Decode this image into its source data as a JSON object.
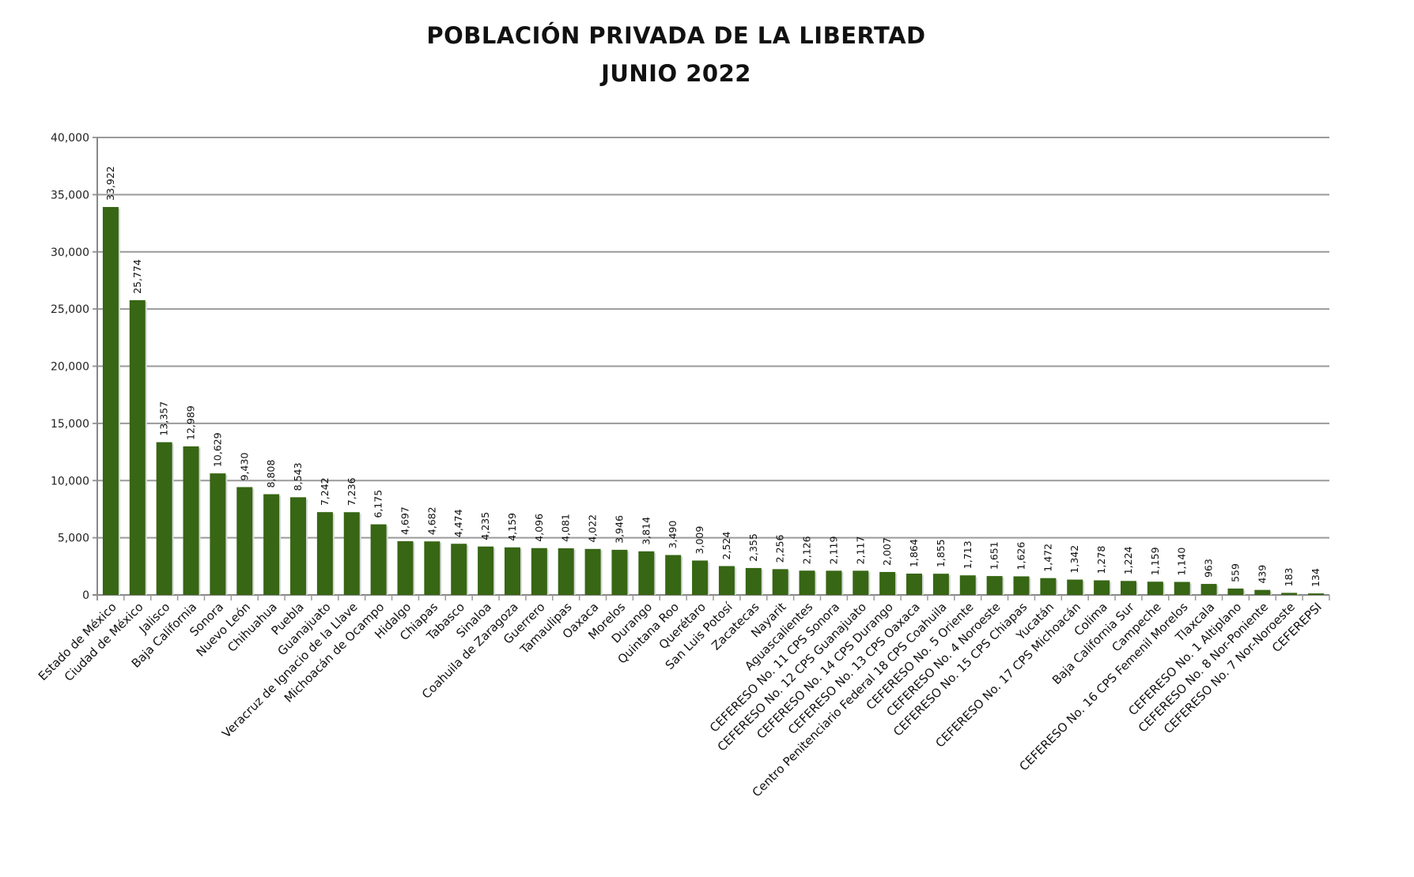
{
  "chart_data": {
    "type": "bar",
    "title": "POBLACIÓN PRIVADA DE LA LIBERTAD",
    "subtitle": "JUNIO 2022",
    "xlabel": "",
    "ylabel": "",
    "ylim": [
      0,
      40000
    ],
    "yticks": [
      0,
      5000,
      10000,
      15000,
      20000,
      25000,
      30000,
      35000,
      40000
    ],
    "ytick_labels": [
      "0",
      "5,000",
      "10,000",
      "15,000",
      "20,000",
      "25,000",
      "30,000",
      "35,000",
      "40,000"
    ],
    "grid": true,
    "bar_color": "#376614",
    "categories": [
      "Estado de México",
      "Ciudad de México",
      "Jalisco",
      "Baja California",
      "Sonora",
      "Nuevo León",
      "Chihuahua",
      "Puebla",
      "Guanajuato",
      "Veracruz de Ignacio de la Llave",
      "Michoacán de Ocampo",
      "Hidalgo",
      "Chiapas",
      "Tabasco",
      "Sinaloa",
      "Coahuila de Zaragoza",
      "Guerrero",
      "Tamaulipas",
      "Oaxaca",
      "Morelos",
      "Durango",
      "Quintana Roo",
      "Querétaro",
      "San Luis Potosí",
      "Zacatecas",
      "Nayarit",
      "Aguascalientes",
      "CEFERESO No. 11 CPS Sonora",
      "CEFERESO No. 12 CPS Guanajuato",
      "CEFERESO No. 14 CPS Durango",
      "CEFERESO No. 13 CPS Oaxaca",
      "Centro Penitenciario Federal 18 CPS Coahuila",
      "CEFERESO No. 5 Oriente",
      "CEFERESO No. 4 Noroeste",
      "CEFERESO No. 15 CPS Chiapas",
      "Yucatán",
      "CEFERESO No. 17 CPS Michoacán",
      "Colima",
      "Baja California Sur",
      "Campeche",
      "CEFERESO No. 16 CPS Femenil Morelos",
      "Tlaxcala",
      "CEFERESO No. 1 Altiplano",
      "CEFERESO No. 8 Nor-Poniente",
      "CEFERESO No. 7 Nor-Noroeste",
      "CEFEREPSI"
    ],
    "values": [
      33922,
      25774,
      13357,
      12989,
      10629,
      9430,
      8808,
      8543,
      7242,
      7236,
      6175,
      4697,
      4682,
      4474,
      4235,
      4159,
      4096,
      4081,
      4022,
      3946,
      3814,
      3490,
      3009,
      2524,
      2355,
      2256,
      2126,
      2119,
      2117,
      2007,
      1864,
      1855,
      1713,
      1651,
      1626,
      1472,
      1342,
      1278,
      1224,
      1159,
      1140,
      963,
      559,
      439,
      183,
      134
    ]
  }
}
